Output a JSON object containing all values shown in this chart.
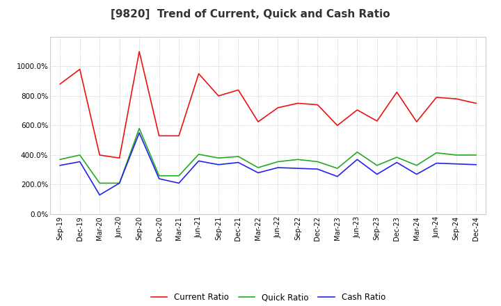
{
  "title": "[9820]  Trend of Current, Quick and Cash Ratio",
  "x_labels": [
    "Sep-19",
    "Dec-19",
    "Mar-20",
    "Jun-20",
    "Sep-20",
    "Dec-20",
    "Mar-21",
    "Jun-21",
    "Sep-21",
    "Dec-21",
    "Mar-22",
    "Jun-22",
    "Sep-22",
    "Dec-22",
    "Mar-23",
    "Jun-23",
    "Sep-23",
    "Dec-23",
    "Mar-24",
    "Jun-24",
    "Sep-24",
    "Dec-24"
  ],
  "current_ratio": [
    880,
    980,
    400,
    380,
    1100,
    530,
    530,
    950,
    800,
    840,
    625,
    720,
    750,
    740,
    600,
    705,
    630,
    825,
    625,
    790,
    780,
    750
  ],
  "quick_ratio": [
    370,
    400,
    210,
    210,
    580,
    260,
    260,
    405,
    380,
    390,
    315,
    355,
    370,
    355,
    310,
    420,
    330,
    385,
    330,
    415,
    400,
    400
  ],
  "cash_ratio": [
    330,
    355,
    130,
    210,
    550,
    240,
    210,
    360,
    335,
    350,
    280,
    315,
    310,
    305,
    255,
    370,
    270,
    350,
    270,
    345,
    340,
    335
  ],
  "ylim": [
    0,
    1200
  ],
  "yticks": [
    0,
    200,
    400,
    600,
    800,
    1000
  ],
  "current_color": "#EE1111",
  "quick_color": "#22AA22",
  "cash_color": "#2222EE",
  "grid_color": "#BBBBBB",
  "bg_color": "#FFFFFF",
  "title_fontsize": 11,
  "tick_fontsize": 7,
  "legend_labels": [
    "Current Ratio",
    "Quick Ratio",
    "Cash Ratio"
  ]
}
